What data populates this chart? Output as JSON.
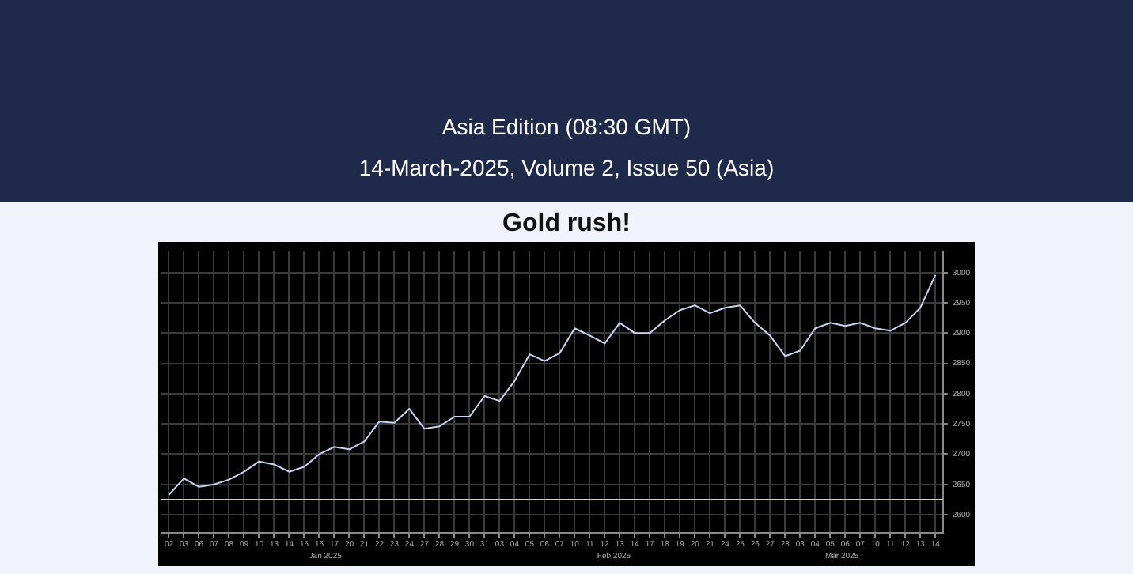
{
  "chart_data": {
    "type": "line",
    "title": "Gold rush!",
    "subtitle": "Asia Edition (08:30 GMT)",
    "annotations": [
      "14-March-2025, Volume 2, Issue 50 (Asia)",
      "Jan 2025",
      "Feb 2025",
      "Mar 2025"
    ],
    "categories": [
      "02",
      "03",
      "06",
      "07",
      "08",
      "09",
      "10",
      "13",
      "14",
      "15",
      "16",
      "17",
      "20",
      "21",
      "22",
      "23",
      "24",
      "27",
      "28",
      "29",
      "30",
      "31",
      "03",
      "04",
      "05",
      "06",
      "07",
      "10",
      "11",
      "12",
      "13",
      "14",
      "17",
      "18",
      "19",
      "20",
      "21",
      "24",
      "25",
      "26",
      "27",
      "28",
      "03",
      "04",
      "05",
      "06",
      "07",
      "10",
      "11",
      "12",
      "13",
      "14"
    ],
    "series": [
      {
        "color": "#c4d6f0",
        "values": [
          2633,
          2660,
          2646,
          2650,
          2658,
          2671,
          2688,
          2683,
          2671,
          2679,
          2700,
          2712,
          2708,
          2721,
          2754,
          2752,
          2775,
          2742,
          2746,
          2762,
          2762,
          2796,
          2788,
          2821,
          2865,
          2854,
          2867,
          2908,
          2896,
          2883,
          2917,
          2900,
          2900,
          2921,
          2938,
          2946,
          2933,
          2942,
          2946,
          2917,
          2896,
          2862,
          2871,
          2908,
          2917,
          2912,
          2917,
          2908,
          2904,
          2917,
          2942,
          2996
        ]
      }
    ],
    "ylim": [
      2570,
      3035
    ],
    "yticks": [
      2600,
      2650,
      2700,
      2750,
      2800,
      2850,
      2900,
      2950,
      3000
    ],
    "grid": true,
    "legend": false,
    "marker": "none",
    "line_style": "solid",
    "ref_lines": [
      {
        "axis": "y",
        "value": 2625,
        "color": "#d8d0c0"
      }
    ]
  }
}
